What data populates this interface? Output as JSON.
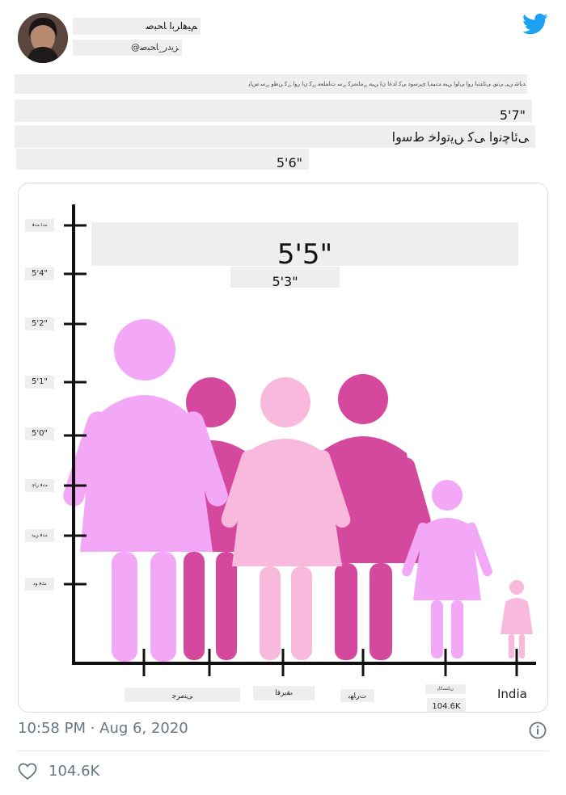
{
  "tweet": {
    "display_name": "ﻢﯿﻫﺍﺮﺑﺍ ﺎﺤﺒﺻ",
    "handle": "@ﺰﯾﺩﺭ_ﺎﺤﺒﺻ",
    "body_line": "ﺪﯾﺎﺷ ﮟﯿﮨ ﯽﺗﻮﮨ ﯽﺋﺍﺪﺘﺑﺍ ﺭﻭﺍ ﯽﻟﻭﺍ ﮟﯿﻣ ﺖﯿﻤﮨﺍ ﯼﺮﺳﻭﺩ ﯽﮐ ﺍﺪﻋﺍ ﻥﺍ ﮟﯿﻣ ﮯﻣﺎﻨﻣﺮﮐ ﮯﺳ ﺕﺎﻤﻠﻌﻣ ﮯﮐ ﻥﺍ ﺭﻭﺍ ﮯﮐ ﻦﻃﻭ ﮯﺳ ﺱﺎﭘ",
    "row1_value": "5'7\"",
    "row2_text": "ﯽﺋﺎﭼﻧﻭﺍ ﯽﮐ ﮟﯾﺗﻭﻟﺧ ﻁﺳﻭﺍ",
    "row3_value": "5'6\"",
    "timestamp": "10:58 PM · Aug 6, 2020",
    "likes": "104.6K"
  },
  "chart_data": {
    "type": "bar",
    "title": "",
    "callout_big": "5'5\"",
    "callout_small": "5'3\"",
    "y_tick_labels": [
      "ﺖﭨ ﺖﻓ",
      "5'4\"",
      "5'2\"",
      "5'1\"",
      "5'0\"",
      "ﺖﻓ ﺭﺎﭼ",
      "ﺖﻓ ﻦﯿﺗ",
      "ﭧﻓ ﻭﺩ"
    ],
    "categories": [
      "ﯽﻨﻣﺮﺟ",
      "ﮦﻘﯾﺮﻓﺍ",
      "ﺕﺭﺎﮭﺑ",
      "ﺮﺼﻣ",
      "India"
    ],
    "count_label": "104.6K",
    "tiny_label": "ﻥﺎﺘﺴﮐﺎﭘ"
  },
  "colors": {
    "light_pink": "#f3a8f7",
    "magenta": "#d4489e",
    "pale_pink": "#f8b9dc",
    "accent_blue": "#1da1f2"
  }
}
